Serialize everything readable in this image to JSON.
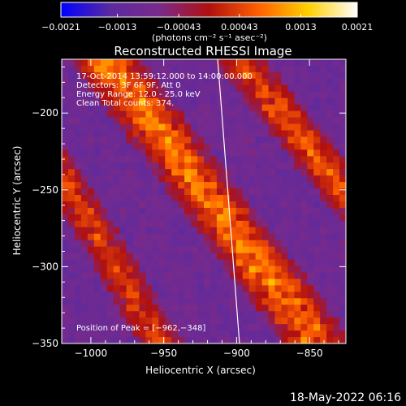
{
  "chart_data": {
    "type": "heatmap",
    "title": "Reconstructed RHESSI Image",
    "xlabel": "Heliocentric X (arcsec)",
    "ylabel": "Heliocentric Y (arcsec)",
    "xlim": [
      -1020,
      -825
    ],
    "ylim": [
      -350,
      -165
    ],
    "xticks": [
      -1000,
      -950,
      -900,
      -850
    ],
    "yticks": [
      -200,
      -250,
      -300,
      -350
    ],
    "xtick_labels": [
      "−1000",
      "−950",
      "−900",
      "−850"
    ],
    "ytick_labels": [
      "−200",
      "−250",
      "−300",
      "−350"
    ],
    "colorbar": {
      "range": [
        -0.0021,
        0.0021
      ],
      "ticks": [
        -0.0021,
        -0.0013,
        -0.00043,
        0.00043,
        0.0013,
        0.0021
      ],
      "tick_labels": [
        "−0.0021",
        "−0.0013",
        "−0.00043",
        "0.00043",
        "0.0013",
        "0.0021"
      ],
      "unit_label": "(photons cm⁻² s⁻¹ asec⁻²)",
      "colors": [
        "#0000ff",
        "#5a2aa0",
        "#7a2a8a",
        "#b01010",
        "#ff6000",
        "#ffd000",
        "#ffffff"
      ]
    },
    "annotations": [
      "17-Oct-2014 13:59:12.000 to 14:00:00.000",
      "Detectors: 3F 6F 9F, Att 0",
      "Energy Range: 12.0 - 25.0 keV",
      "Clean    Total counts: 374."
    ],
    "peak_label": "Position of Peak = [−962,−348]",
    "peak_position": [
      -962,
      -348
    ],
    "limb_line": [
      [
        -913,
        -165
      ],
      [
        -898,
        -350
      ]
    ]
  },
  "footer": {
    "date": "18-May-2022 06:16"
  }
}
